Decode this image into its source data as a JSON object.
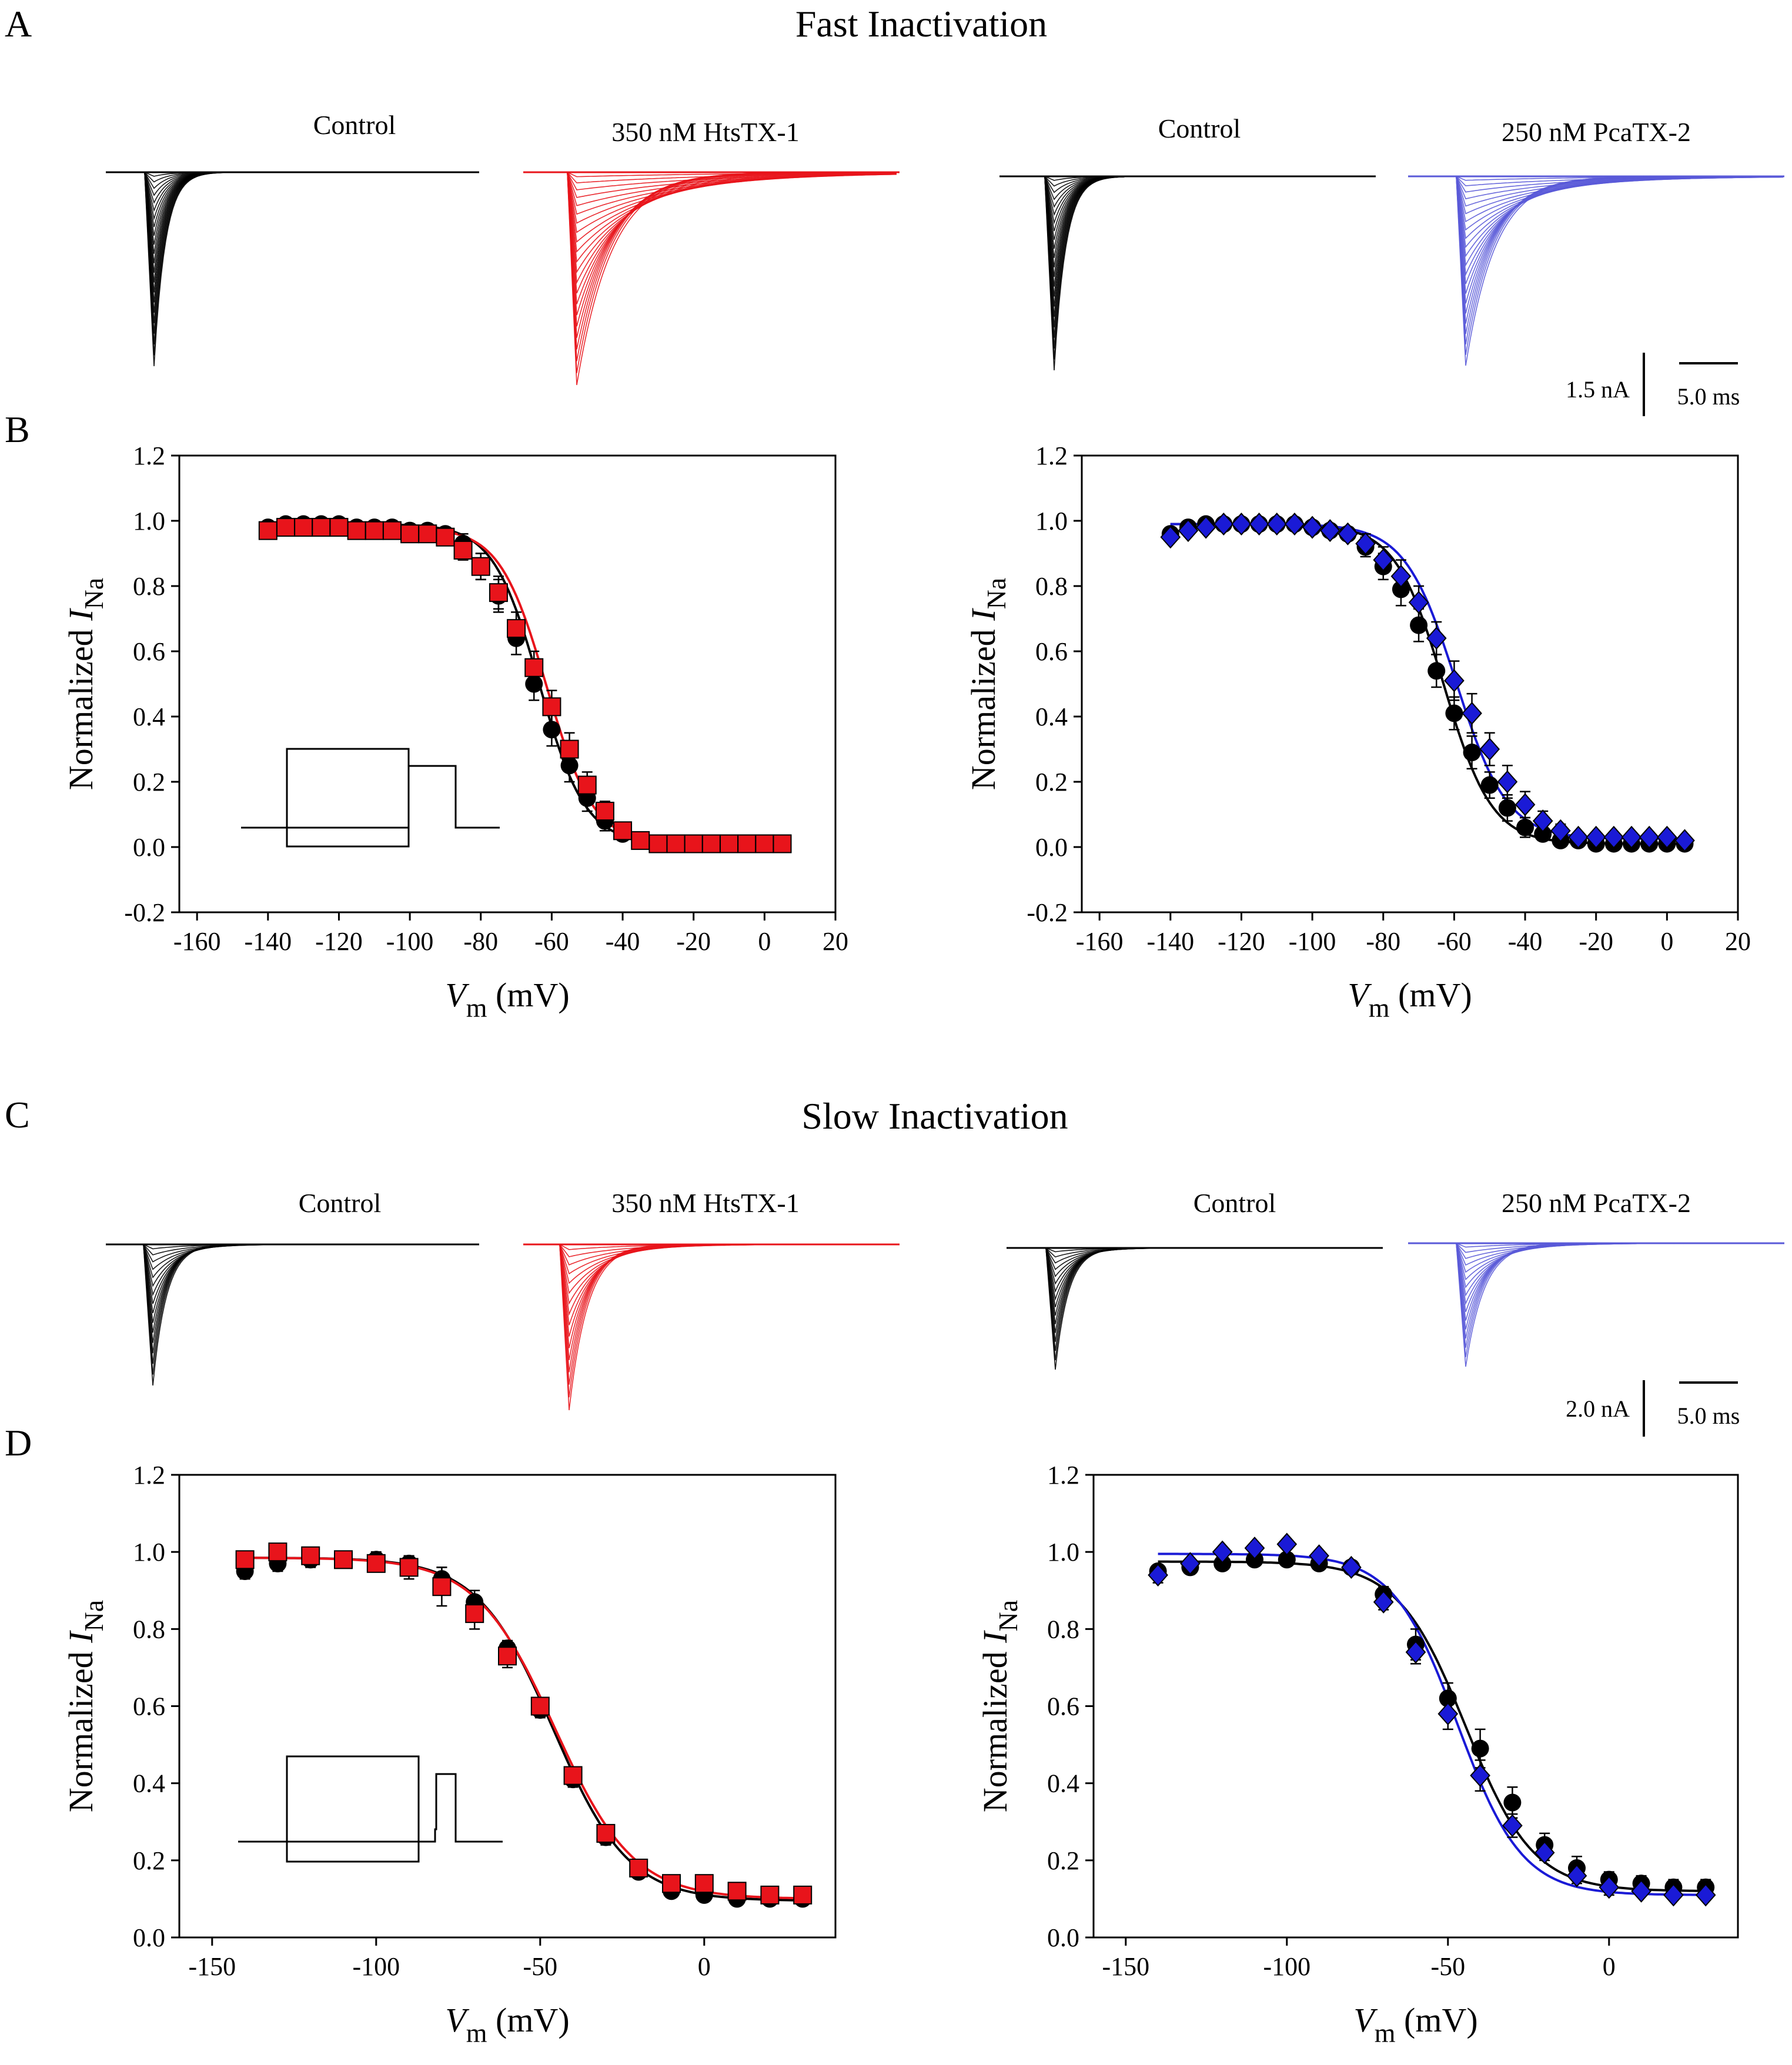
{
  "figure": {
    "panel_letters": [
      "A",
      "B",
      "C",
      "D"
    ],
    "sections": {
      "fast": "Fast Inactivation",
      "slow": "Slow Inactivation"
    }
  },
  "colors": {
    "control": "#000000",
    "htstx": "#e8141b",
    "pcatx": "#1a1ad6",
    "trace_pcatx": "#5a5ad8"
  },
  "trace_groups": [
    {
      "id": "A",
      "labels": [
        "Control",
        "350 nM HtsTX-1",
        "Control",
        "250 nM PcaTX-2"
      ],
      "scalebar": {
        "current": "1.5 nA",
        "time": "5.0 ms"
      },
      "n_sweeps": 22
    },
    {
      "id": "C",
      "labels": [
        "Control",
        "350 nM HtsTX-1",
        "Control",
        "250 nM PcaTX-2"
      ],
      "scalebar": {
        "current": "2.0 nA",
        "time": "5.0 ms"
      },
      "n_sweeps": 16
    }
  ],
  "chart_data": [
    {
      "id": "B-left",
      "type": "scatter",
      "xlabel_main": "V",
      "xlabel_sub": "m",
      "xlabel_unit": "(mV)",
      "ylabel_main": "Normalized I",
      "ylabel_sub": "Na",
      "xlim": [
        -165,
        20
      ],
      "ylim": [
        -0.2,
        1.2
      ],
      "xticks": [
        -160,
        -140,
        -120,
        -100,
        -80,
        -60,
        -40,
        -20,
        0,
        20
      ],
      "yticks": [
        -0.2,
        0.0,
        0.2,
        0.4,
        0.6,
        0.8,
        1.0,
        1.2
      ],
      "xtick_labels": [
        "-160",
        "-140",
        "-120",
        "-100",
        "-80",
        "-60",
        "-40",
        "-20",
        "0",
        "20"
      ],
      "ytick_labels": [
        "-0.2",
        "0.0",
        "0.2",
        "0.4",
        "0.6",
        "0.8",
        "1.0",
        "1.2"
      ],
      "protocol_inset": "fast",
      "series": [
        {
          "name": "Control",
          "marker": "circle",
          "color": "#000000",
          "x": [
            -140,
            -135,
            -130,
            -125,
            -120,
            -115,
            -110,
            -105,
            -100,
            -95,
            -90,
            -85,
            -80,
            -75,
            -70,
            -65,
            -60,
            -55,
            -50,
            -45,
            -40,
            -35,
            -30,
            -25,
            -20,
            -15,
            -10,
            -5,
            0,
            5
          ],
          "y": [
            0.98,
            0.99,
            0.99,
            0.99,
            0.99,
            0.98,
            0.98,
            0.98,
            0.97,
            0.97,
            0.96,
            0.93,
            0.86,
            0.77,
            0.64,
            0.5,
            0.36,
            0.25,
            0.15,
            0.08,
            0.04,
            0.02,
            0.01,
            0.01,
            0.01,
            0.01,
            0.01,
            0.01,
            0.01,
            0.01
          ],
          "err": [
            0.01,
            0.02,
            0.02,
            0.02,
            0.02,
            0.02,
            0.02,
            0.02,
            0.02,
            0.02,
            0.02,
            0.03,
            0.04,
            0.05,
            0.05,
            0.05,
            0.05,
            0.05,
            0.04,
            0.03,
            0.02,
            0.01,
            0.01,
            0.01,
            0.01,
            0.01,
            0.01,
            0.01,
            0.01,
            0.01
          ],
          "fit": {
            "v_half": -63.5,
            "k": 6.5,
            "top": 0.99,
            "bottom": 0.01
          }
        },
        {
          "name": "350 nM HtsTX-1",
          "marker": "square",
          "color": "#e8141b",
          "x": [
            -140,
            -135,
            -130,
            -125,
            -120,
            -115,
            -110,
            -105,
            -100,
            -95,
            -90,
            -85,
            -80,
            -75,
            -70,
            -65,
            -60,
            -55,
            -50,
            -45,
            -40,
            -35,
            -30,
            -25,
            -20,
            -15,
            -10,
            -5,
            0,
            5
          ],
          "y": [
            0.97,
            0.98,
            0.98,
            0.98,
            0.98,
            0.97,
            0.97,
            0.97,
            0.96,
            0.96,
            0.95,
            0.91,
            0.86,
            0.78,
            0.67,
            0.55,
            0.43,
            0.3,
            0.19,
            0.11,
            0.05,
            0.02,
            0.01,
            0.01,
            0.01,
            0.01,
            0.01,
            0.01,
            0.01,
            0.01
          ],
          "err": [
            0.01,
            0.02,
            0.02,
            0.02,
            0.02,
            0.02,
            0.02,
            0.02,
            0.02,
            0.02,
            0.02,
            0.03,
            0.04,
            0.05,
            0.05,
            0.05,
            0.05,
            0.05,
            0.04,
            0.03,
            0.02,
            0.01,
            0.01,
            0.01,
            0.01,
            0.01,
            0.01,
            0.01,
            0.01,
            0.01
          ],
          "fit": {
            "v_half": -61.5,
            "k": 6.6,
            "top": 0.98,
            "bottom": 0.01
          }
        }
      ]
    },
    {
      "id": "B-right",
      "type": "scatter",
      "xlabel_main": "V",
      "xlabel_sub": "m",
      "xlabel_unit": "(mV)",
      "ylabel_main": "Normalized I",
      "ylabel_sub": "Na",
      "xlim": [
        -165,
        20
      ],
      "ylim": [
        -0.2,
        1.2
      ],
      "xticks": [
        -160,
        -140,
        -120,
        -100,
        -80,
        -60,
        -40,
        -20,
        0,
        20
      ],
      "yticks": [
        -0.2,
        0.0,
        0.2,
        0.4,
        0.6,
        0.8,
        1.0,
        1.2
      ],
      "xtick_labels": [
        "-160",
        "-140",
        "-120",
        "-100",
        "-80",
        "-60",
        "-40",
        "-20",
        "0",
        "20"
      ],
      "ytick_labels": [
        "-0.2",
        "0.0",
        "0.2",
        "0.4",
        "0.6",
        "0.8",
        "1.0",
        "1.2"
      ],
      "protocol_inset": "",
      "series": [
        {
          "name": "Control",
          "marker": "circle",
          "color": "#000000",
          "x": [
            -140,
            -135,
            -130,
            -125,
            -120,
            -115,
            -110,
            -105,
            -100,
            -95,
            -90,
            -85,
            -80,
            -75,
            -70,
            -65,
            -60,
            -55,
            -50,
            -45,
            -40,
            -35,
            -30,
            -25,
            -20,
            -15,
            -10,
            -5,
            0,
            5
          ],
          "y": [
            0.96,
            0.98,
            0.99,
            0.99,
            0.99,
            0.99,
            0.99,
            0.99,
            0.98,
            0.97,
            0.96,
            0.92,
            0.86,
            0.79,
            0.68,
            0.54,
            0.41,
            0.29,
            0.19,
            0.12,
            0.06,
            0.04,
            0.02,
            0.02,
            0.01,
            0.01,
            0.01,
            0.01,
            0.01,
            0.01
          ],
          "err": [
            0.01,
            0.01,
            0.01,
            0.01,
            0.01,
            0.01,
            0.01,
            0.01,
            0.01,
            0.01,
            0.02,
            0.03,
            0.04,
            0.05,
            0.05,
            0.05,
            0.05,
            0.05,
            0.04,
            0.04,
            0.03,
            0.02,
            0.01,
            0.01,
            0.01,
            0.01,
            0.01,
            0.01,
            0.01,
            0.01
          ],
          "fit": {
            "v_half": -63.0,
            "k": 6.8,
            "top": 0.99,
            "bottom": 0.01
          }
        },
        {
          "name": "250 nM PcaTX-2",
          "marker": "diamond",
          "color": "#1a1ad6",
          "x": [
            -140,
            -135,
            -130,
            -125,
            -120,
            -115,
            -110,
            -105,
            -100,
            -95,
            -90,
            -85,
            -80,
            -75,
            -70,
            -65,
            -60,
            -55,
            -50,
            -45,
            -40,
            -35,
            -30,
            -25,
            -20,
            -15,
            -10,
            -5,
            0,
            5
          ],
          "y": [
            0.95,
            0.97,
            0.98,
            0.99,
            0.99,
            0.99,
            0.99,
            0.99,
            0.98,
            0.97,
            0.96,
            0.93,
            0.88,
            0.83,
            0.75,
            0.64,
            0.51,
            0.41,
            0.3,
            0.2,
            0.13,
            0.08,
            0.05,
            0.03,
            0.03,
            0.03,
            0.03,
            0.03,
            0.03,
            0.02
          ],
          "err": [
            0.01,
            0.01,
            0.01,
            0.01,
            0.01,
            0.01,
            0.01,
            0.01,
            0.01,
            0.01,
            0.02,
            0.03,
            0.04,
            0.05,
            0.05,
            0.05,
            0.06,
            0.06,
            0.05,
            0.05,
            0.04,
            0.03,
            0.02,
            0.01,
            0.01,
            0.01,
            0.01,
            0.01,
            0.01,
            0.01
          ],
          "fit": {
            "v_half": -59.5,
            "k": 7.2,
            "top": 0.99,
            "bottom": 0.025
          }
        }
      ]
    },
    {
      "id": "D-left",
      "type": "scatter",
      "xlabel_main": "V",
      "xlabel_sub": "m",
      "xlabel_unit": "(mV)",
      "ylabel_main": "Normalized I",
      "ylabel_sub": "Na",
      "xlim": [
        -160,
        40
      ],
      "ylim": [
        0.0,
        1.2
      ],
      "xticks": [
        -150,
        -100,
        -50,
        0
      ],
      "yticks": [
        0.0,
        0.2,
        0.4,
        0.6,
        0.8,
        1.0,
        1.2
      ],
      "xtick_labels": [
        "-150",
        "-100",
        "-50",
        "0"
      ],
      "ytick_labels": [
        "0.0",
        "0.2",
        "0.4",
        "0.6",
        "0.8",
        "1.0",
        "1.2"
      ],
      "protocol_inset": "slow",
      "series": [
        {
          "name": "Control",
          "marker": "circle",
          "color": "#000000",
          "x": [
            -140,
            -130,
            -120,
            -110,
            -100,
            -90,
            -80,
            -70,
            -60,
            -50,
            -40,
            -30,
            -20,
            -10,
            0,
            10,
            20,
            30
          ],
          "y": [
            0.95,
            0.97,
            0.98,
            0.98,
            0.98,
            0.97,
            0.93,
            0.87,
            0.75,
            0.59,
            0.41,
            0.26,
            0.17,
            0.12,
            0.11,
            0.1,
            0.1,
            0.1
          ],
          "err": [
            0.02,
            0.02,
            0.02,
            0.02,
            0.02,
            0.02,
            0.03,
            0.03,
            0.02,
            0.02,
            0.02,
            0.02,
            0.01,
            0.01,
            0.01,
            0.01,
            0.01,
            0.01
          ],
          "fit": {
            "v_half": -46.0,
            "k": 11.5,
            "top": 0.985,
            "bottom": 0.095
          }
        },
        {
          "name": "350 nM HtsTX-1",
          "marker": "square",
          "color": "#e8141b",
          "x": [
            -140,
            -130,
            -120,
            -110,
            -100,
            -90,
            -80,
            -70,
            -60,
            -50,
            -40,
            -30,
            -20,
            -10,
            0,
            10,
            20,
            30
          ],
          "y": [
            0.98,
            1.0,
            0.99,
            0.98,
            0.97,
            0.96,
            0.91,
            0.84,
            0.73,
            0.6,
            0.42,
            0.27,
            0.18,
            0.14,
            0.14,
            0.12,
            0.11,
            0.11
          ],
          "err": [
            0.02,
            0.02,
            0.02,
            0.02,
            0.02,
            0.03,
            0.05,
            0.04,
            0.03,
            0.02,
            0.02,
            0.01,
            0.01,
            0.01,
            0.02,
            0.01,
            0.01,
            0.01
          ],
          "fit": {
            "v_half": -45.5,
            "k": 12.0,
            "top": 0.985,
            "bottom": 0.1
          }
        }
      ]
    },
    {
      "id": "D-right",
      "type": "scatter",
      "xlabel_main": "V",
      "xlabel_sub": "m",
      "xlabel_unit": "(mV)",
      "ylabel_main": "Normalized I",
      "ylabel_sub": "Na",
      "xlim": [
        -160,
        40
      ],
      "ylim": [
        0.0,
        1.2
      ],
      "xticks": [
        -150,
        -100,
        -50,
        0
      ],
      "yticks": [
        0.0,
        0.2,
        0.4,
        0.6,
        0.8,
        1.0,
        1.2
      ],
      "xtick_labels": [
        "-150",
        "-100",
        "-50",
        "0"
      ],
      "ytick_labels": [
        "0.0",
        "0.2",
        "0.4",
        "0.6",
        "0.8",
        "1.0",
        "1.2"
      ],
      "protocol_inset": "",
      "series": [
        {
          "name": "Control",
          "marker": "circle",
          "color": "#000000",
          "x": [
            -140,
            -130,
            -120,
            -110,
            -100,
            -90,
            -80,
            -70,
            -60,
            -50,
            -40,
            -30,
            -20,
            -10,
            0,
            10,
            20,
            30
          ],
          "y": [
            0.95,
            0.96,
            0.97,
            0.98,
            0.98,
            0.97,
            0.96,
            0.89,
            0.76,
            0.62,
            0.49,
            0.35,
            0.24,
            0.18,
            0.15,
            0.14,
            0.13,
            0.13
          ],
          "err": [
            0.01,
            0.01,
            0.01,
            0.01,
            0.01,
            0.01,
            0.01,
            0.02,
            0.04,
            0.04,
            0.05,
            0.04,
            0.03,
            0.03,
            0.02,
            0.02,
            0.02,
            0.02
          ],
          "fit": {
            "v_half": -44.5,
            "k": 10.5,
            "top": 0.975,
            "bottom": 0.12
          }
        },
        {
          "name": "250 nM PcaTX-2",
          "marker": "diamond",
          "color": "#1a1ad6",
          "x": [
            -140,
            -130,
            -120,
            -110,
            -100,
            -90,
            -80,
            -70,
            -60,
            -50,
            -40,
            -30,
            -20,
            -10,
            0,
            10,
            20,
            30
          ],
          "y": [
            0.94,
            0.97,
            1.0,
            1.01,
            1.02,
            0.99,
            0.96,
            0.87,
            0.74,
            0.58,
            0.42,
            0.29,
            0.22,
            0.16,
            0.13,
            0.12,
            0.11,
            0.11
          ],
          "err": [
            0.02,
            0.01,
            0.01,
            0.01,
            0.01,
            0.01,
            0.01,
            0.02,
            0.03,
            0.04,
            0.04,
            0.03,
            0.02,
            0.02,
            0.02,
            0.01,
            0.01,
            0.01
          ],
          "fit": {
            "v_half": -47.0,
            "k": 10.0,
            "top": 0.995,
            "bottom": 0.11
          }
        }
      ]
    }
  ]
}
